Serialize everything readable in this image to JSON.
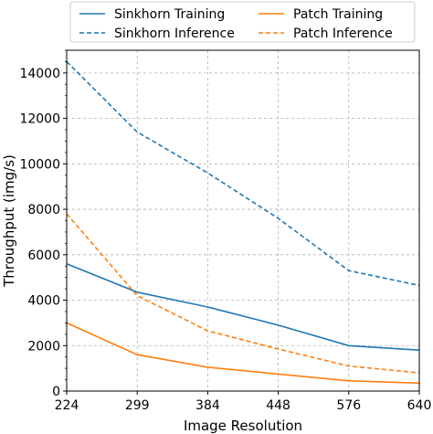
{
  "chart_data": {
    "type": "line",
    "xlabel": "Image Resolution",
    "ylabel": "Throughput (img/s)",
    "categories": [
      "224",
      "299",
      "384",
      "448",
      "576",
      "640"
    ],
    "ylim": [
      0,
      15000
    ],
    "yticks": [
      "0",
      "2000",
      "4000",
      "6000",
      "8000",
      "10000",
      "12000",
      "14000"
    ],
    "grid": true,
    "legend_position": "top",
    "series": [
      {
        "name": "Sinkhorn Training",
        "color": "#1f77b4",
        "style": "solid",
        "values": [
          5600,
          4350,
          3700,
          2900,
          2000,
          1800
        ]
      },
      {
        "name": "Sinkhorn Inference",
        "color": "#1f77b4",
        "style": "dashed",
        "values": [
          14500,
          11400,
          9600,
          7600,
          5300,
          4650
        ]
      },
      {
        "name": "Patch Training",
        "color": "#ff7f0e",
        "style": "solid",
        "values": [
          3000,
          1600,
          1050,
          750,
          450,
          350
        ]
      },
      {
        "name": "Patch Inference",
        "color": "#ff7f0e",
        "style": "dashed",
        "values": [
          7800,
          4200,
          2650,
          1850,
          1100,
          800
        ]
      }
    ]
  }
}
